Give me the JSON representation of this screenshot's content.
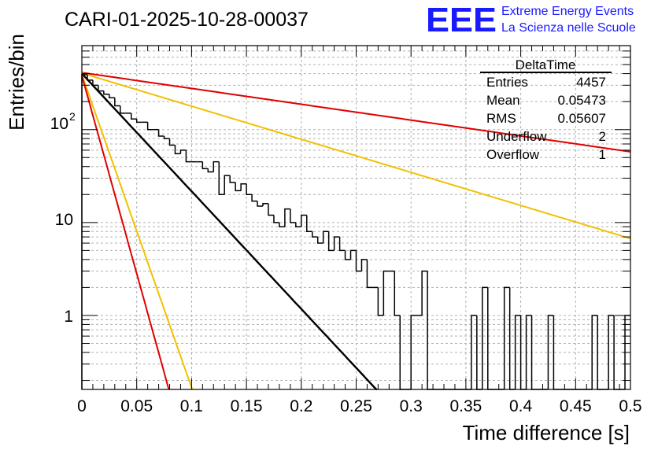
{
  "header": {
    "run_title": "CARI-01-2025-10-28-00037",
    "logo_text": "EEE",
    "org_line1": "Extreme Energy Events",
    "org_line2": "La Scienza nelle Scuole",
    "logo_color": "#1a1aff"
  },
  "stats_box": {
    "title": "DeltaTime",
    "rows": [
      {
        "label": "Entries",
        "value": "4457"
      },
      {
        "label": "Mean",
        "value": "0.05473"
      },
      {
        "label": "RMS",
        "value": "0.05607"
      },
      {
        "label": "Underflow",
        "value": "2"
      },
      {
        "label": "Overflow",
        "value": "1"
      }
    ]
  },
  "chart_data": {
    "type": "histogram",
    "title": "DeltaTime",
    "xlabel": "Time difference [s]",
    "ylabel": "Entries/bin",
    "xlim": [
      0,
      0.5
    ],
    "ylim": [
      0.16,
      800
    ],
    "yscale": "log",
    "grid": true,
    "x_ticks": [
      0,
      0.05,
      0.1,
      0.15,
      0.2,
      0.25,
      0.3,
      0.35,
      0.4,
      0.45,
      0.5
    ],
    "x_tick_labels": [
      "0",
      "0.05",
      "0.1",
      "0.15",
      "0.2",
      "0.25",
      "0.3",
      "0.35",
      "0.4",
      "0.45",
      "0.5"
    ],
    "y_ticks": [
      1,
      10,
      100
    ],
    "y_tick_labels": [
      "1",
      "10",
      "10",
      "2"
    ],
    "bin_width": 0.005,
    "bin_counts": [
      390,
      340,
      300,
      260,
      240,
      220,
      180,
      150,
      150,
      130,
      120,
      120,
      100,
      100,
      85,
      80,
      68,
      55,
      60,
      45,
      45,
      45,
      38,
      35,
      45,
      20,
      32,
      27,
      22,
      26,
      20,
      17,
      15,
      16,
      12,
      10,
      9,
      14,
      10,
      9,
      12,
      8,
      7,
      6,
      8,
      5,
      7,
      5,
      4,
      5,
      3,
      4,
      2,
      2,
      1,
      3,
      3,
      1,
      0,
      0,
      1,
      1,
      3,
      0,
      0,
      0,
      0,
      0,
      0,
      0,
      0,
      1,
      0,
      2,
      0,
      0,
      0,
      2,
      0,
      1,
      0,
      1,
      0,
      0,
      0,
      1,
      0,
      0,
      0,
      0,
      0,
      0,
      0,
      1,
      0,
      0,
      1,
      0,
      0,
      1
    ],
    "fits": [
      {
        "name": "fit",
        "color": "#000000",
        "a": 400,
        "tau": 0.0343
      },
      {
        "name": "upper-limit-long",
        "color": "#e00000",
        "a": 410,
        "tau": 0.255
      },
      {
        "name": "lower-limit-long",
        "color": "#f2c000",
        "a": 405,
        "tau": 0.122
      },
      {
        "name": "lower-limit-short",
        "color": "#f2c000",
        "a": 390,
        "tau": 0.0129
      },
      {
        "name": "upper-limit-short",
        "color": "#e00000",
        "a": 380,
        "tau": 0.0102
      }
    ]
  }
}
